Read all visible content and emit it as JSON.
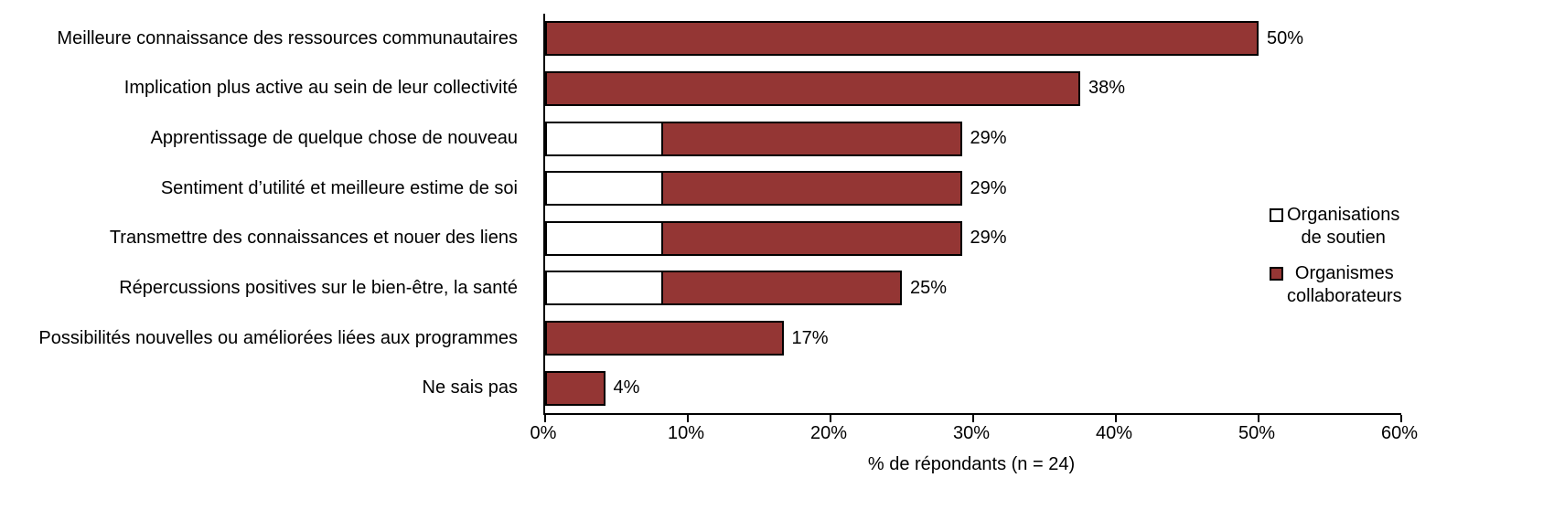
{
  "chart_data": {
    "type": "bar",
    "orientation": "horizontal",
    "stacked": true,
    "title": "",
    "xlabel": "% de répondants (n = 24)",
    "xlim": [
      0,
      60
    ],
    "x_ticks": [
      "0%",
      "10%",
      "20%",
      "30%",
      "40%",
      "50%",
      "60%"
    ],
    "grid": false,
    "legend_position": "right",
    "categories": [
      "Meilleure connaissance des ressources communautaires",
      "Implication plus active au sein de leur collectivité",
      "Apprentissage de quelque chose de nouveau",
      "Sentiment d’utilité et meilleure estime de soi",
      "Transmettre des connaissances et nouer des liens",
      "Répercussions positives sur le bien-être, la santé",
      "Possibilités nouvelles ou améliorées liées aux programmes",
      "Ne sais pas"
    ],
    "series": [
      {
        "name": "Organisations de soutien",
        "color": "#FFFFFF",
        "values": [
          0,
          0,
          8.3,
          8.3,
          8.3,
          8.3,
          0,
          0
        ]
      },
      {
        "name": "Organismes collaborateurs",
        "color": "#943634",
        "values": [
          50,
          37.5,
          20.9,
          20.9,
          20.9,
          16.7,
          16.7,
          4.2
        ]
      }
    ],
    "bar_total_labels": [
      "50%",
      "38%",
      "29%",
      "29%",
      "29%",
      "25%",
      "17%",
      "4%"
    ],
    "legend": [
      {
        "label_lines": [
          "Organisations",
          "de soutien"
        ],
        "color": "#FFFFFF"
      },
      {
        "label_lines": [
          "Organismes",
          "collaborateurs"
        ],
        "color": "#943634"
      }
    ],
    "axis_color": "#000000",
    "bar_border_color": "#000000"
  }
}
